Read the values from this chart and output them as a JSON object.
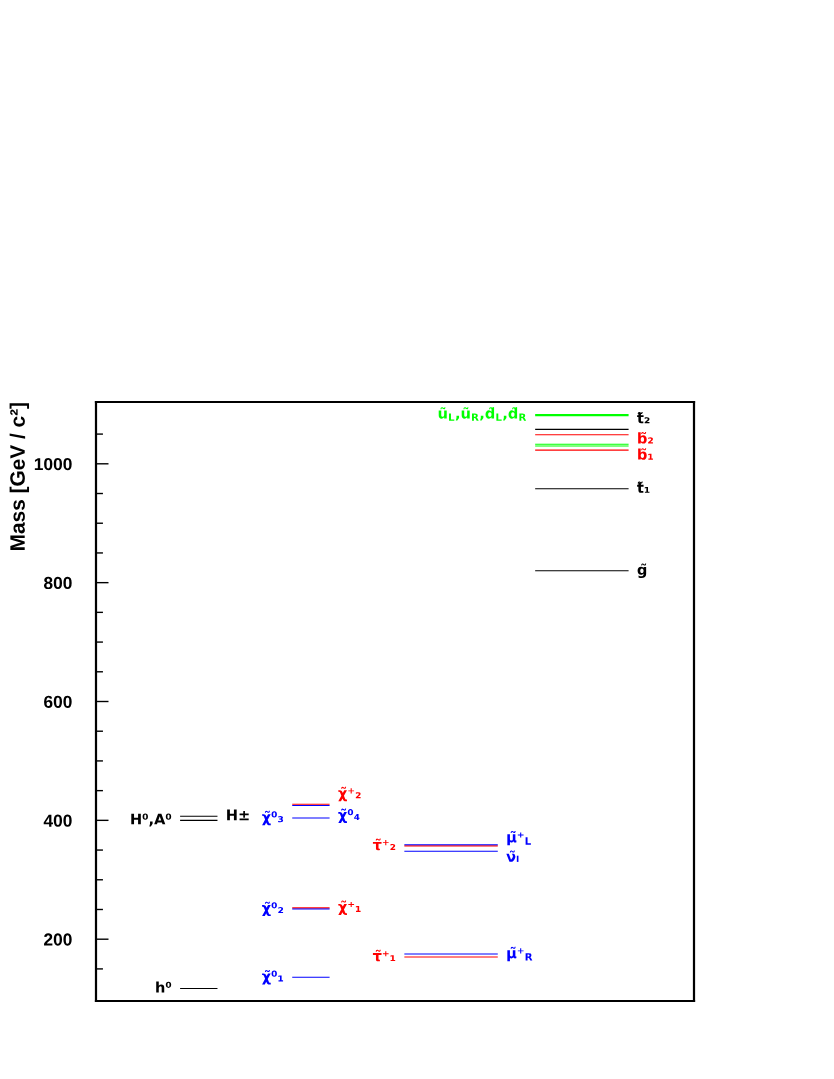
{
  "chart_data": {
    "type": "line",
    "ylabel": "Mass [GeV / c²]",
    "tick_labels": "y",
    "categories": [
      null,
      null,
      null,
      null,
      null,
      null,
      null,
      null,
      null,
      null,
      null,
      null,
      null,
      null,
      null,
      null,
      null,
      null,
      null,
      null,
      null,
      null,
      null,
      null,
      null,
      null,
      null,
      null,
      null,
      null,
      null,
      null
    ],
    "ylim": [
      96,
      1104
    ],
    "yticks": [
      {
        "value": 150,
        "label": null
      },
      200,
      {
        "value": 250,
        "label": null
      },
      {
        "value": 300,
        "label": null
      },
      {
        "value": 350,
        "label": null
      },
      400,
      {
        "value": 450,
        "label": null
      },
      {
        "value": 500,
        "label": null
      },
      {
        "value": 550,
        "label": null
      },
      600,
      {
        "value": 650,
        "label": null
      },
      {
        "value": 700,
        "label": null
      },
      {
        "value": 750,
        "label": null
      },
      800,
      {
        "value": 850,
        "label": null
      },
      {
        "value": 900,
        "label": null
      },
      {
        "value": 950,
        "label": null
      },
      1000,
      {
        "value": 1050,
        "label": null
      }
    ],
    "series": [
      {
        "name": "h⁰",
        "color": "#000000",
        "values": [
          null,
          null,
          null,
          null,
          117,
          117,
          117,
          null,
          null,
          null,
          null,
          null,
          null,
          null,
          null,
          null,
          null,
          null,
          null,
          null,
          null,
          null,
          null,
          null,
          null,
          null,
          null,
          null,
          null,
          null,
          null,
          null
        ]
      },
      {
        "name": "H⁰,A⁰",
        "color": "#000000",
        "values": [
          null,
          null,
          null,
          null,
          400,
          400,
          400,
          null,
          null,
          null,
          null,
          null,
          null,
          null,
          null,
          null,
          null,
          null,
          null,
          null,
          null,
          null,
          null,
          null,
          null,
          null,
          null,
          null,
          null,
          null,
          null,
          null
        ]
      },
      {
        "name": "H±",
        "color": "#000000",
        "values": [
          null,
          null,
          null,
          null,
          407,
          407,
          407,
          null,
          null,
          null,
          null,
          null,
          null,
          null,
          null,
          null,
          null,
          null,
          null,
          null,
          null,
          null,
          null,
          null,
          null,
          null,
          null,
          null,
          null,
          null,
          null,
          null
        ]
      },
      {
        "name": "χ̃⁰₁",
        "color": "#0000ff",
        "values": [
          null,
          null,
          null,
          null,
          null,
          null,
          null,
          null,
          null,
          null,
          136,
          136,
          136,
          null,
          null,
          null,
          null,
          null,
          null,
          null,
          null,
          null,
          null,
          null,
          null,
          null,
          null,
          null,
          null,
          null,
          null,
          null
        ]
      },
      {
        "name": "χ̃⁰₂",
        "color": "#0000ff",
        "values": [
          null,
          null,
          null,
          null,
          null,
          null,
          null,
          null,
          null,
          null,
          251,
          251,
          251,
          null,
          null,
          null,
          null,
          null,
          null,
          null,
          null,
          null,
          null,
          null,
          null,
          null,
          null,
          null,
          null,
          null,
          null,
          null
        ]
      },
      {
        "name": "χ̃⁺₁",
        "color": "#ff0000",
        "values": [
          null,
          null,
          null,
          null,
          null,
          null,
          null,
          null,
          null,
          null,
          253,
          253,
          253,
          null,
          null,
          null,
          null,
          null,
          null,
          null,
          null,
          null,
          null,
          null,
          null,
          null,
          null,
          null,
          null,
          null,
          null,
          null
        ]
      },
      {
        "name": "χ̃⁰₃",
        "color": "#0000ff",
        "values": [
          null,
          null,
          null,
          null,
          null,
          null,
          null,
          null,
          null,
          null,
          404,
          404,
          404,
          null,
          null,
          null,
          null,
          null,
          null,
          null,
          null,
          null,
          null,
          null,
          null,
          null,
          null,
          null,
          null,
          null,
          null,
          null
        ]
      },
      {
        "name": "χ̃⁰₄",
        "color": "#0000ff",
        "values": [
          null,
          null,
          null,
          null,
          null,
          null,
          null,
          null,
          null,
          null,
          425,
          425,
          425,
          null,
          null,
          null,
          null,
          null,
          null,
          null,
          null,
          null,
          null,
          null,
          null,
          null,
          null,
          null,
          null,
          null,
          null,
          null
        ]
      },
      {
        "name": "χ̃⁺₂",
        "color": "#ff0000",
        "values": [
          null,
          null,
          null,
          null,
          null,
          null,
          null,
          null,
          null,
          null,
          427,
          427,
          427,
          null,
          null,
          null,
          null,
          null,
          null,
          null,
          null,
          null,
          null,
          null,
          null,
          null,
          null,
          null,
          null,
          null,
          null,
          null
        ]
      },
      {
        "name": "τ̃⁺₁",
        "color": "#ff0000",
        "values": [
          null,
          null,
          null,
          null,
          null,
          null,
          null,
          null,
          null,
          null,
          null,
          null,
          null,
          null,
          null,
          null,
          170,
          170,
          170,
          170,
          170,
          170,
          null,
          null,
          null,
          null,
          null,
          null,
          null,
          null,
          null,
          null
        ]
      },
      {
        "name": "μ̃⁺$_{R}$",
        "color": "#0000ff",
        "values": [
          null,
          null,
          null,
          null,
          null,
          null,
          null,
          null,
          null,
          null,
          null,
          null,
          null,
          null,
          null,
          null,
          175,
          175,
          175,
          175,
          175,
          175,
          null,
          null,
          null,
          null,
          null,
          null,
          null,
          null,
          null,
          null
        ]
      },
      {
        "name": "τ̃⁺₂",
        "color": "#ff0000",
        "values": [
          null,
          null,
          null,
          null,
          null,
          null,
          null,
          null,
          null,
          null,
          null,
          null,
          null,
          null,
          null,
          null,
          357,
          357,
          357,
          357,
          357,
          357,
          null,
          null,
          null,
          null,
          null,
          null,
          null,
          null,
          null,
          null
        ]
      },
      {
        "name": "μ̃⁺$_{L}$",
        "color": "#0000ff",
        "values": [
          null,
          null,
          null,
          null,
          null,
          null,
          null,
          null,
          null,
          null,
          null,
          null,
          null,
          null,
          null,
          null,
          359,
          359,
          359,
          359,
          359,
          359,
          null,
          null,
          null,
          null,
          null,
          null,
          null,
          null,
          null,
          null
        ]
      },
      {
        "name": "ν̃ₗ",
        "color": "#0000ff",
        "values": [
          null,
          null,
          null,
          null,
          null,
          null,
          null,
          null,
          null,
          null,
          null,
          null,
          null,
          null,
          null,
          null,
          348,
          348,
          348,
          348,
          348,
          348,
          null,
          null,
          null,
          null,
          null,
          null,
          null,
          null,
          null,
          null
        ]
      },
      {
        "name": "g̃",
        "color": "#000000",
        "values": [
          null,
          null,
          null,
          null,
          null,
          null,
          null,
          null,
          null,
          null,
          null,
          null,
          null,
          null,
          null,
          null,
          null,
          null,
          null,
          null,
          null,
          null,
          null,
          820,
          820,
          820,
          820,
          820,
          820,
          null,
          null,
          null
        ]
      },
      {
        "name": "t̃₁",
        "color": "#000000",
        "values": [
          null,
          null,
          null,
          null,
          null,
          null,
          null,
          null,
          null,
          null,
          null,
          null,
          null,
          null,
          null,
          null,
          null,
          null,
          null,
          null,
          null,
          null,
          null,
          958,
          958,
          958,
          958,
          958,
          958,
          null,
          null,
          null
        ]
      },
      {
        "name": "b̃₁",
        "color": "#ff0000",
        "values": [
          null,
          null,
          null,
          null,
          null,
          null,
          null,
          null,
          null,
          null,
          null,
          null,
          null,
          null,
          null,
          null,
          null,
          null,
          null,
          null,
          null,
          null,
          null,
          1023,
          1023,
          1023,
          1023,
          1023,
          1023,
          null,
          null,
          null
        ]
      },
      {
        "name": "b̃₂",
        "color": "#ff0000",
        "values": [
          null,
          null,
          null,
          null,
          null,
          null,
          null,
          null,
          null,
          null,
          null,
          null,
          null,
          null,
          null,
          null,
          null,
          null,
          null,
          null,
          null,
          null,
          null,
          1049,
          1049,
          1049,
          1049,
          1049,
          1049,
          null,
          null,
          null
        ]
      },
      {
        "name": "t̃₂",
        "color": "#000000",
        "values": [
          null,
          null,
          null,
          null,
          null,
          null,
          null,
          null,
          null,
          null,
          null,
          null,
          null,
          null,
          null,
          null,
          null,
          null,
          null,
          null,
          null,
          null,
          null,
          1058,
          1058,
          1058,
          1058,
          1058,
          1058,
          null,
          null,
          null
        ]
      },
      {
        "name": "ũ$_{L}$,ũ$_{R}$,d̃$_{L}$,d̃$_{R}$",
        "color": "#00ff00",
        "values": [
          null,
          null,
          null,
          null,
          null,
          null,
          null,
          null,
          null,
          null,
          null,
          null,
          null,
          null,
          null,
          null,
          null,
          null,
          null,
          null,
          null,
          null,
          null,
          1083,
          1083,
          1083,
          1083,
          1083,
          1083,
          null,
          null,
          null
        ]
      },
      {
        "color": "#00ff00",
        "values": [
          null,
          null,
          null,
          null,
          null,
          null,
          null,
          null,
          null,
          null,
          null,
          null,
          null,
          null,
          null,
          null,
          null,
          null,
          null,
          null,
          null,
          null,
          null,
          1081,
          1081,
          1081,
          1081,
          1081,
          1081,
          null,
          null,
          null
        ]
      },
      {
        "color": "#00ff00",
        "values": [
          null,
          null,
          null,
          null,
          null,
          null,
          null,
          null,
          null,
          null,
          null,
          null,
          null,
          null,
          null,
          null,
          null,
          null,
          null,
          null,
          null,
          null,
          null,
          1033,
          1033,
          1033,
          1033,
          1033,
          1033,
          null,
          null,
          null
        ]
      },
      {
        "color": "#00ff00",
        "values": [
          null,
          null,
          null,
          null,
          null,
          null,
          null,
          null,
          null,
          null,
          null,
          null,
          null,
          null,
          null,
          null,
          null,
          null,
          null,
          null,
          null,
          null,
          null,
          1030,
          1030,
          1030,
          1030,
          1030,
          1030,
          null,
          null,
          null
        ]
      }
    ]
  }
}
